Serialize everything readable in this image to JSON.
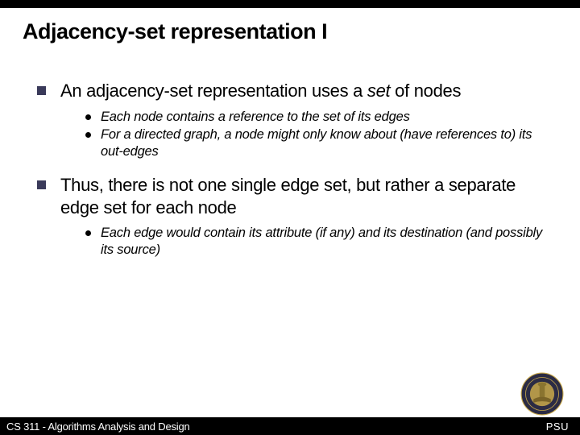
{
  "colors": {
    "top_bar": "#000000",
    "footer_bg": "#000000",
    "footer_text": "#ffffff",
    "title_text": "#000000",
    "body_text": "#000000",
    "square_bullet": "#3a3a5a",
    "round_bullet": "#000000",
    "background": "#ffffff",
    "seal_gold": "#c9a94a",
    "seal_dark": "#2b2b44"
  },
  "typography": {
    "title_fontsize": 27,
    "l1_fontsize": 22,
    "l2_fontsize": 16.5,
    "footer_fontsize": 13,
    "font_family": "Verdana"
  },
  "title": "Adjacency-set representation I",
  "bullets": [
    {
      "html": "An adjacency-set representation uses a <span class=\"italic\">set</span> of nodes",
      "sub": [
        "Each node contains a reference to the set of its edges",
        "For a directed graph, a node might only know about (have references to) its out-edges"
      ]
    },
    {
      "html": "Thus, there is not one single edge set, but rather a separate edge set for each node",
      "sub": [
        "Each edge would contain its attribute (if any) and its destination (and possibly its source)"
      ]
    }
  ],
  "footer": {
    "left": "CS 311 - Algorithms Analysis and Design",
    "right": "PSU"
  }
}
